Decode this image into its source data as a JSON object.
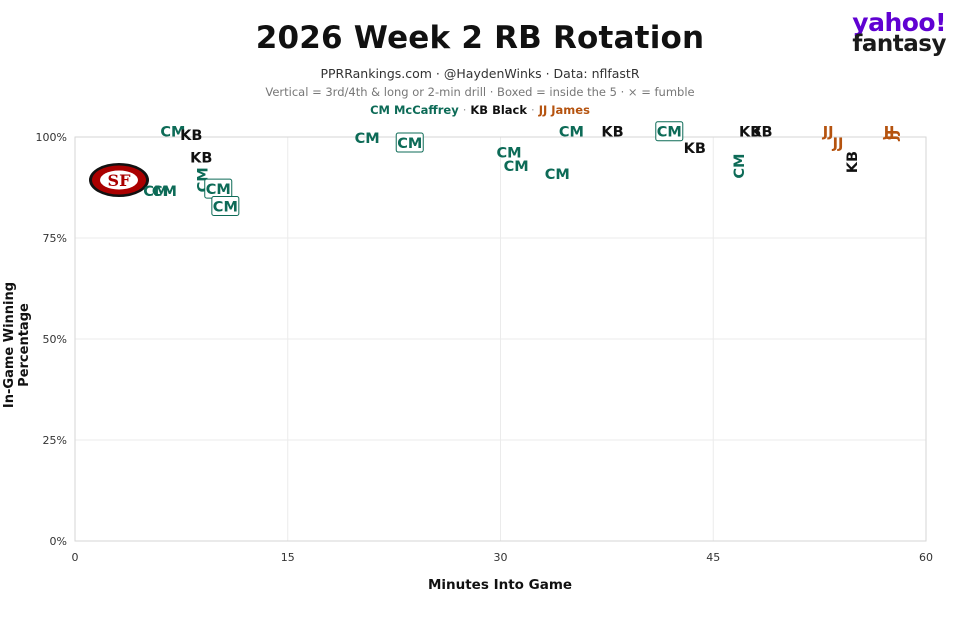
{
  "header": {
    "title": "2026 Week 2 RB Rotation",
    "subtitle": "PPRRankings.com · @HaydenWinks · Data: nflfastR",
    "note": "Vertical = 3rd/4th & long or 2-min drill · Boxed = inside the 5 · × = fumble",
    "legend": [
      {
        "label": "CM McCaffrey",
        "color": "#0d6b57"
      },
      {
        "label": "KB Black",
        "color": "#111111"
      },
      {
        "label": "JJ James",
        "color": "#b5530f"
      }
    ],
    "legend_sep": "·"
  },
  "brand": {
    "line1": "yahoo!",
    "line2": "fantasy"
  },
  "team_logo": {
    "name": "49ers-logo",
    "text": "SF",
    "colors": {
      "primary": "#aa0000",
      "secondary": "#b3995d"
    }
  },
  "chart_data": {
    "type": "scatter",
    "title": "2026 Week 2 RB Rotation",
    "xlabel": "Minutes Into Game",
    "ylabel": "In-Game Winning Percentage",
    "xlim": [
      0,
      60
    ],
    "ylim": [
      0,
      100
    ],
    "xticks": [
      0,
      15,
      30,
      45,
      60
    ],
    "yticks": [
      0,
      25,
      50,
      75,
      100
    ],
    "ytick_labels": [
      "0%",
      "25%",
      "50%",
      "75%",
      "100%"
    ],
    "grid": true,
    "series": [
      {
        "name": "CM McCaffrey",
        "label": "CM",
        "color": "#0d6b57",
        "points": [
          {
            "x": 6.9,
            "y": 101.3,
            "vertical": false,
            "boxed": false
          },
          {
            "x": 5.7,
            "y": 86.6,
            "vertical": false,
            "boxed": false
          },
          {
            "x": 6.3,
            "y": 86.6,
            "vertical": false,
            "boxed": false
          },
          {
            "x": 9.0,
            "y": 89.4,
            "vertical": true,
            "boxed": false
          },
          {
            "x": 10.1,
            "y": 87.1,
            "vertical": false,
            "boxed": true
          },
          {
            "x": 10.6,
            "y": 82.8,
            "vertical": false,
            "boxed": true
          },
          {
            "x": 20.6,
            "y": 99.8,
            "vertical": false,
            "boxed": false
          },
          {
            "x": 23.6,
            "y": 98.5,
            "vertical": false,
            "boxed": true
          },
          {
            "x": 30.6,
            "y": 96.2,
            "vertical": false,
            "boxed": false
          },
          {
            "x": 31.1,
            "y": 92.8,
            "vertical": false,
            "boxed": false
          },
          {
            "x": 34.0,
            "y": 90.8,
            "vertical": false,
            "boxed": false
          },
          {
            "x": 35.0,
            "y": 101.3,
            "vertical": false,
            "boxed": false
          },
          {
            "x": 41.9,
            "y": 101.3,
            "vertical": false,
            "boxed": true
          },
          {
            "x": 46.8,
            "y": 92.8,
            "vertical": true,
            "boxed": false
          }
        ]
      },
      {
        "name": "KB Black",
        "label": "KB",
        "color": "#111111",
        "points": [
          {
            "x": 8.2,
            "y": 100.5,
            "vertical": false,
            "boxed": false
          },
          {
            "x": 8.9,
            "y": 94.9,
            "vertical": false,
            "boxed": false
          },
          {
            "x": 37.9,
            "y": 101.3,
            "vertical": false,
            "boxed": false
          },
          {
            "x": 43.7,
            "y": 97.3,
            "vertical": false,
            "boxed": false
          },
          {
            "x": 47.6,
            "y": 101.3,
            "vertical": false,
            "boxed": false
          },
          {
            "x": 48.4,
            "y": 101.3,
            "vertical": false,
            "boxed": false
          },
          {
            "x": 54.8,
            "y": 93.8,
            "vertical": true,
            "boxed": false
          }
        ]
      },
      {
        "name": "JJ James",
        "label": "JJ",
        "color": "#b5530f",
        "points": [
          {
            "x": 53.1,
            "y": 101.3,
            "vertical": false,
            "boxed": false
          },
          {
            "x": 53.8,
            "y": 98.5,
            "vertical": false,
            "boxed": false
          },
          {
            "x": 57.4,
            "y": 101.3,
            "vertical": false,
            "boxed": false
          },
          {
            "x": 57.6,
            "y": 100.5,
            "vertical": true,
            "boxed": false
          }
        ]
      }
    ]
  }
}
